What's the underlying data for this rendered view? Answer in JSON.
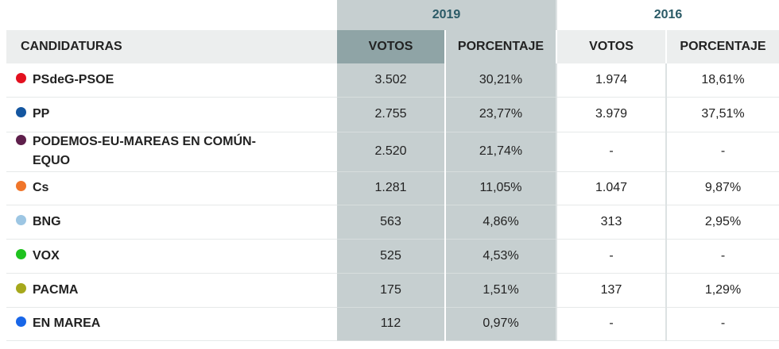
{
  "years": {
    "current": "2019",
    "previous": "2016"
  },
  "headers": {
    "name": "CANDIDATURAS",
    "votes_2019": "VOTOS",
    "pct_2019": "PORCENTAJE",
    "votes_2016": "VOTOS",
    "pct_2016": "PORCENTAJE"
  },
  "rows": [
    {
      "name": "PSdeG-PSOE",
      "color": "#e3101f",
      "votes_2019": "3.502",
      "pct_2019": "30,21%",
      "votes_2016": "1.974",
      "pct_2016": "18,61%"
    },
    {
      "name": "PP",
      "color": "#1456a0",
      "votes_2019": "2.755",
      "pct_2019": "23,77%",
      "votes_2016": "3.979",
      "pct_2016": "37,51%"
    },
    {
      "name": "PODEMOS-EU-MAREAS EN COMÚN-EQUO",
      "color": "#5e1f4b",
      "votes_2019": "2.520",
      "pct_2019": "21,74%",
      "votes_2016": "-",
      "pct_2016": "-"
    },
    {
      "name": "Cs",
      "color": "#f0752a",
      "votes_2019": "1.281",
      "pct_2019": "11,05%",
      "votes_2016": "1.047",
      "pct_2016": "9,87%"
    },
    {
      "name": "BNG",
      "color": "#9dc6e3",
      "votes_2019": "563",
      "pct_2019": "4,86%",
      "votes_2016": "313",
      "pct_2016": "2,95%"
    },
    {
      "name": "VOX",
      "color": "#1fc21f",
      "votes_2019": "525",
      "pct_2019": "4,53%",
      "votes_2016": "-",
      "pct_2016": "-"
    },
    {
      "name": "PACMA",
      "color": "#a6a81c",
      "votes_2019": "175",
      "pct_2019": "1,51%",
      "votes_2016": "137",
      "pct_2016": "1,29%"
    },
    {
      "name": "EN MAREA",
      "color": "#1866e8",
      "votes_2019": "112",
      "pct_2019": "0,97%",
      "votes_2016": "-",
      "pct_2016": "-"
    }
  ]
}
